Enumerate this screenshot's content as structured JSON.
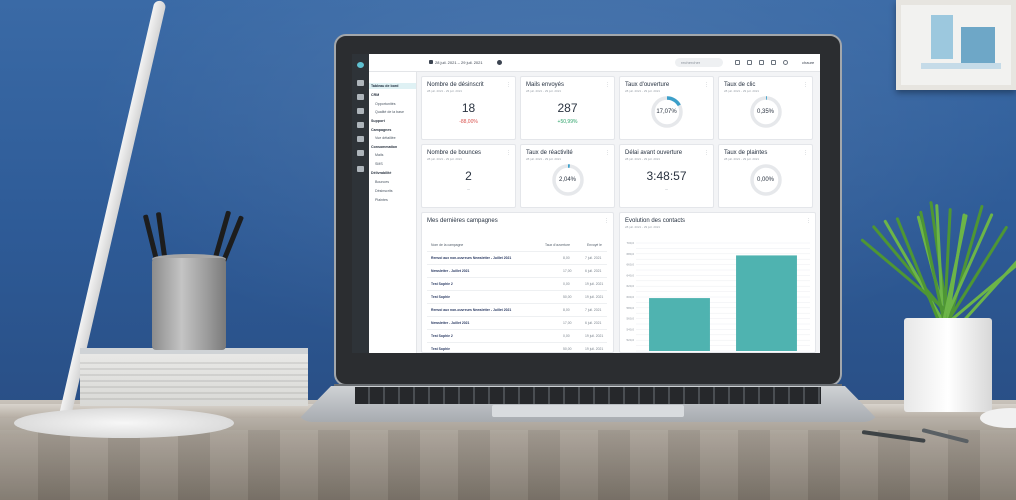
{
  "topbar": {
    "date_range": "28 juil. 2021 – 29 juil. 2021",
    "search_placeholder": "rechercher",
    "user_name": "chaure"
  },
  "menu": {
    "items": [
      {
        "label": "Tableau de bord",
        "kind": "active"
      },
      {
        "label": "CRM",
        "kind": "head"
      },
      {
        "label": "Opportunités",
        "kind": "sub"
      },
      {
        "label": "Qualité de la base",
        "kind": "sub"
      },
      {
        "label": "Support",
        "kind": "head"
      },
      {
        "label": "Campagnes",
        "kind": "head"
      },
      {
        "label": "Vue détaillée",
        "kind": "sub"
      },
      {
        "label": "Consommation",
        "kind": "head"
      },
      {
        "label": "Mails",
        "kind": "sub"
      },
      {
        "label": "SMS",
        "kind": "sub"
      },
      {
        "label": "Délivrabilité",
        "kind": "head"
      },
      {
        "label": "Bounces",
        "kind": "sub"
      },
      {
        "label": "Désinscrits",
        "kind": "sub"
      },
      {
        "label": "Plaintes",
        "kind": "sub"
      }
    ]
  },
  "kpis": [
    {
      "title": "Nombre de désinscrit",
      "sub": "28 juil. 2021 - 29 juil. 2021",
      "value": "18",
      "delta": "-88,00%",
      "trend": "neg"
    },
    {
      "title": "Mails envoyés",
      "sub": "28 juil. 2021 - 29 juil. 2021",
      "value": "287",
      "delta": "+50,99%",
      "trend": "pos"
    },
    {
      "title": "Taux d'ouverture",
      "sub": "28 juil. 2021 - 29 juil. 2021",
      "ring": "17,07%",
      "ratio": 0.17
    },
    {
      "title": "Taux de clic",
      "sub": "28 juil. 2021 - 29 juil. 2021",
      "ring": "0,35%",
      "ratio": 0.0035
    },
    {
      "title": "Nombre de bounces",
      "sub": "28 juil. 2021 - 29 juil. 2021",
      "value": "2",
      "delta": "–",
      "trend": "none"
    },
    {
      "title": "Taux de réactivité",
      "sub": "28 juil. 2021 - 29 juil. 2021",
      "ring": "2,04%",
      "ratio": 0.02
    },
    {
      "title": "Délai avant ouverture",
      "sub": "28 juil. 2021 - 29 juil. 2021",
      "value": "3:48:57",
      "delta": "–",
      "trend": "none"
    },
    {
      "title": "Taux de plaintes",
      "sub": "28 juil. 2021 - 29 juil. 2021",
      "ring": "0,00%",
      "ratio": 0
    }
  ],
  "campaigns": {
    "title": "Mes dernières campagnes",
    "columns": [
      "Nom de la campagne",
      "Taux d'ouverture",
      "Envoyé le"
    ],
    "rows": [
      {
        "name": "Renvoi aux non-ouvreurs Newsletter - Juillet 2021",
        "rate": "8,00",
        "date": "7 juil. 2021"
      },
      {
        "name": "Newsletter - Juillet 2021",
        "rate": "17,00",
        "date": "6 juil. 2021"
      },
      {
        "name": "Test Sophie 2",
        "rate": "0,00",
        "date": "19 juil. 2021"
      },
      {
        "name": "Test Sophie",
        "rate": "50,00",
        "date": "19 juil. 2021"
      },
      {
        "name": "Renvoi aux non-ouvreurs Newsletter - Juillet 2021",
        "rate": "8,00",
        "date": "7 juil. 2021"
      },
      {
        "name": "Newsletter - Juillet 2021",
        "rate": "17,00",
        "date": "6 juil. 2021"
      },
      {
        "name": "Test Sophie 2",
        "rate": "0,00",
        "date": "19 juil. 2021"
      },
      {
        "name": "Test Sophie",
        "rate": "50,00",
        "date": "19 juil. 2021"
      }
    ]
  },
  "contacts": {
    "title": "Evolution des contacts",
    "sub": "28 juil. 2021 - 29 juil. 2021"
  },
  "chart_data": {
    "type": "bar",
    "categories": [
      "",
      ""
    ],
    "values": [
      598,
      677
    ],
    "ylim": [
      500,
      700
    ],
    "yticks": [
      500,
      510,
      520,
      530,
      540,
      550,
      560,
      570,
      580,
      590,
      600,
      610,
      620,
      630,
      640,
      650,
      660,
      670,
      680,
      690,
      700
    ],
    "ytick_labels": [
      "",
      "",
      "520,0",
      "",
      "540,0",
      "",
      "560,0",
      "",
      "580,0",
      "",
      "600,0",
      "",
      "620,0",
      "",
      "640,0",
      "",
      "660,0",
      "",
      "680,0",
      "",
      "700,0"
    ],
    "color": "#4fb3b0",
    "grid": true
  },
  "colors": {
    "accent": "#4fb3b0",
    "ring": "#3c9fc9",
    "ring_track": "#e6e8eb"
  }
}
